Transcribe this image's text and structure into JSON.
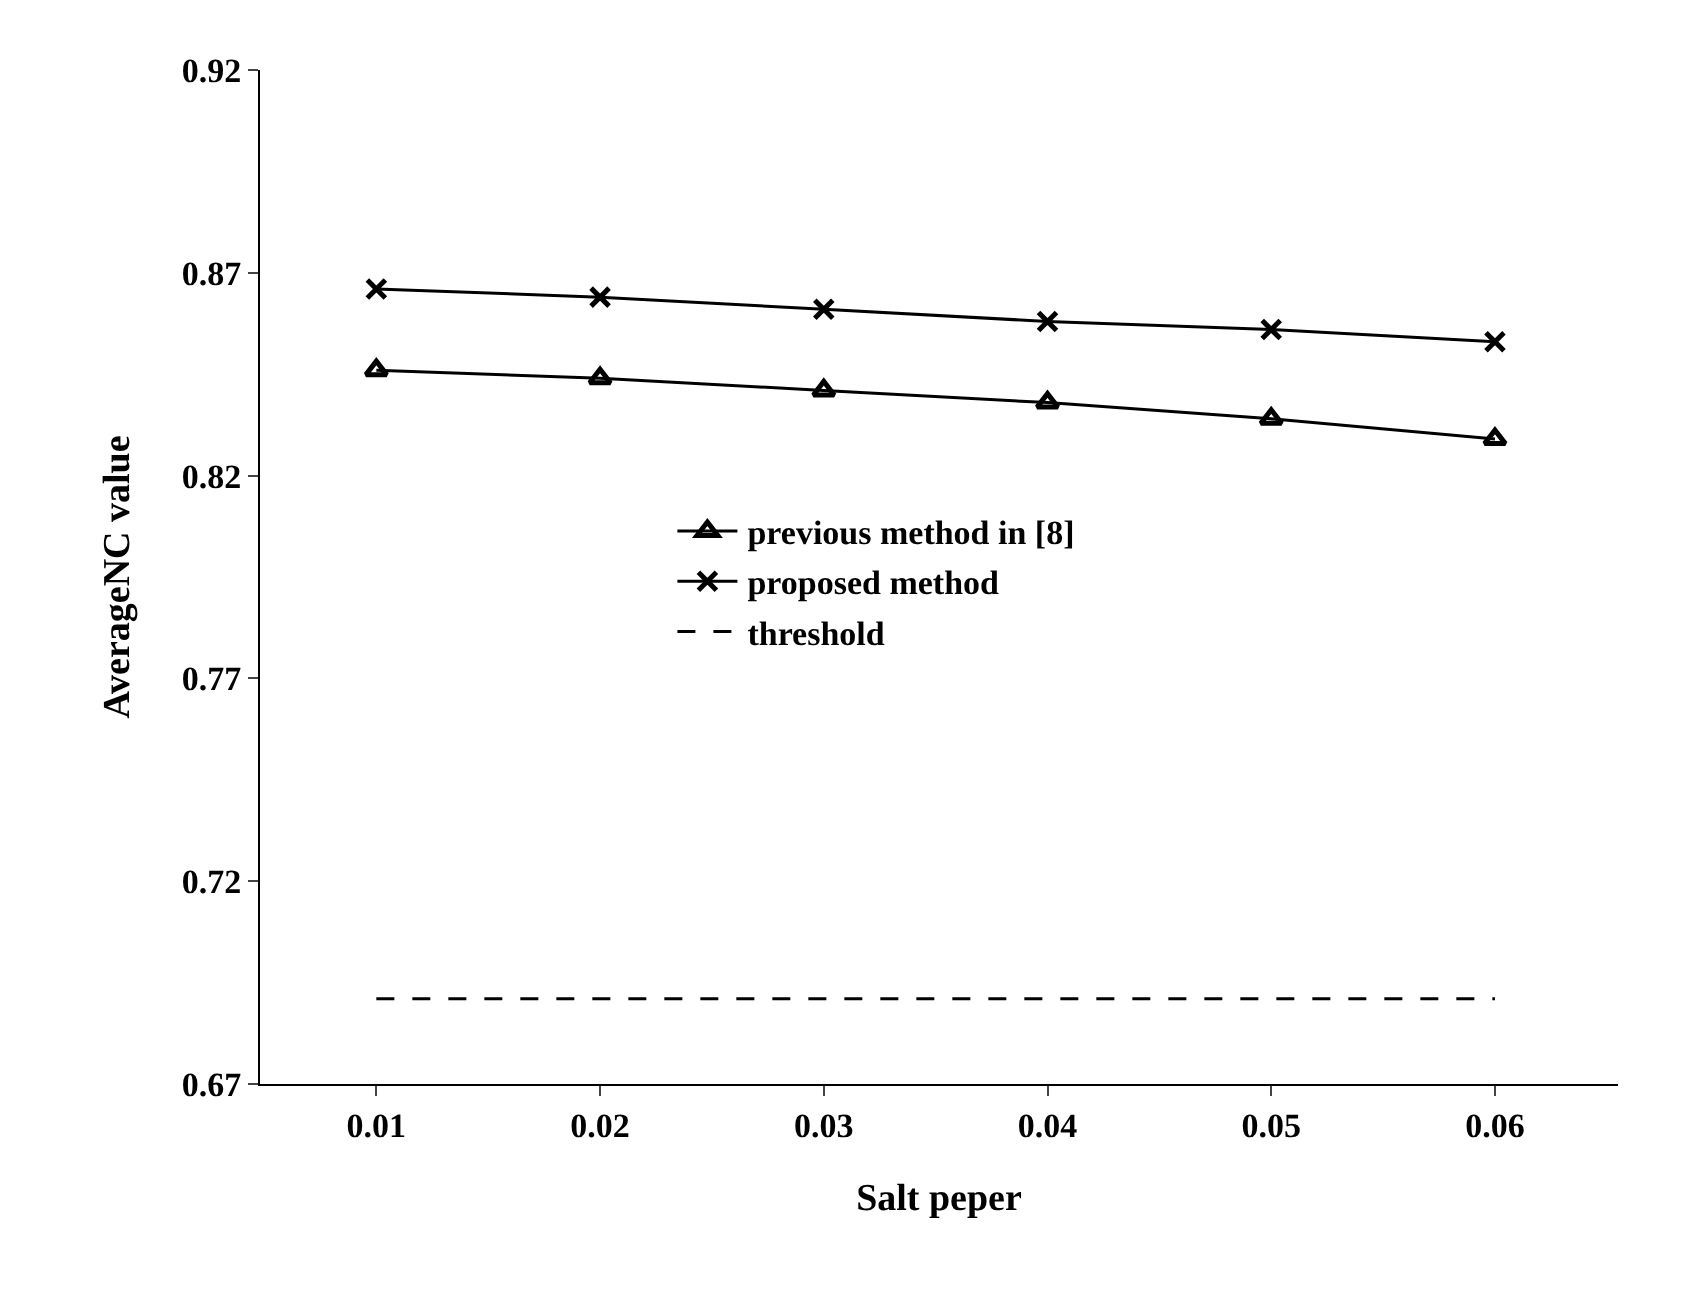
{
  "chart_data": {
    "type": "line",
    "xlabel": "Salt peper",
    "ylabel": "AverageNC value",
    "categories": [
      "0.01",
      "0.02",
      "0.03",
      "0.04",
      "0.05",
      "0.06"
    ],
    "series": [
      {
        "name": "previous method in [8]",
        "color": "#000000",
        "marker": "triangle",
        "line_style": "solid",
        "values": [
          0.846,
          0.844,
          0.841,
          0.838,
          0.834,
          0.829
        ]
      },
      {
        "name": "proposed method",
        "color": "#000000",
        "marker": "cross",
        "line_style": "solid",
        "values": [
          0.866,
          0.864,
          0.861,
          0.858,
          0.856,
          0.853
        ]
      },
      {
        "name": "threshold",
        "color": "#000000",
        "marker": "none",
        "line_style": "dashed",
        "values": [
          0.691,
          0.691,
          0.691,
          0.691,
          0.691,
          0.691
        ]
      }
    ],
    "ylim": [
      0.67,
      0.92
    ],
    "yticks": [
      0.67,
      0.72,
      0.77,
      0.82,
      0.87,
      0.92
    ],
    "legend": "center"
  }
}
